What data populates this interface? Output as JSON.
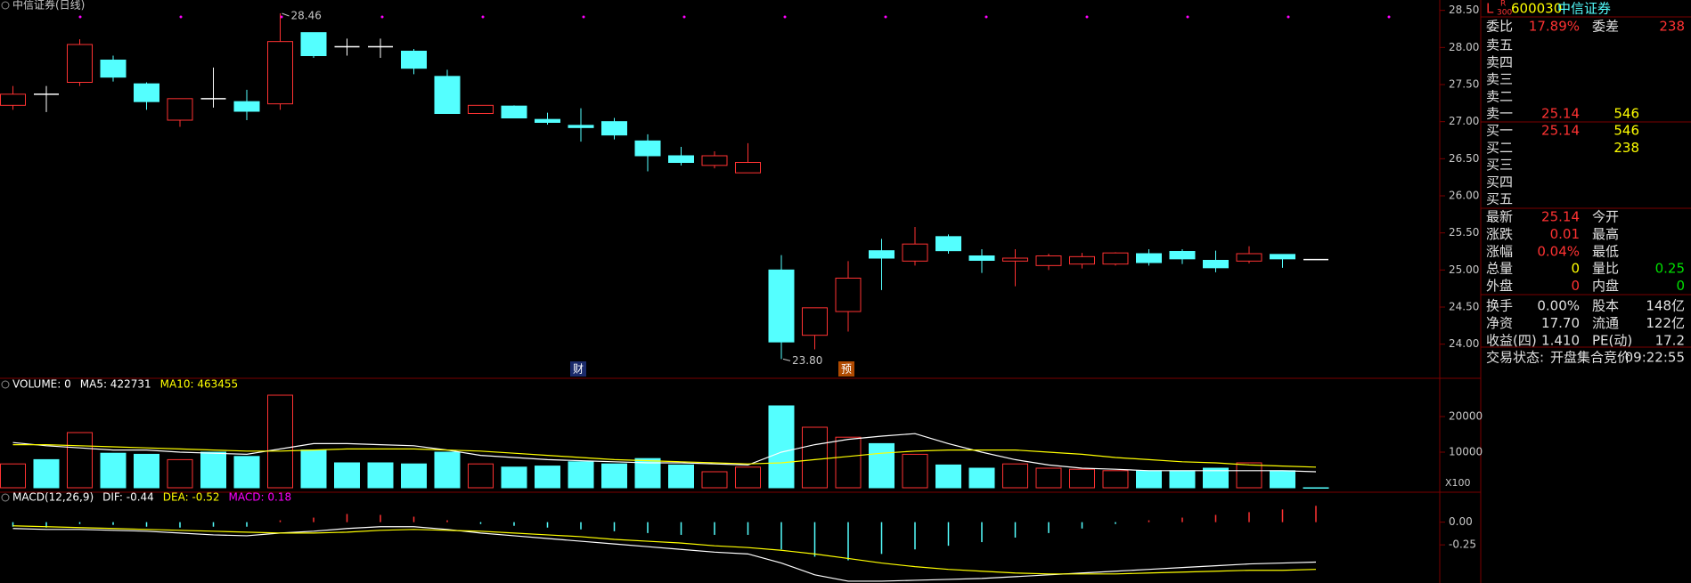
{
  "chart_data": [
    {
      "type": "candlestick",
      "title": "中信证券(日线)",
      "up_color": "#ff3232",
      "down_color": "#54ffff",
      "doji_color": "#ffffff",
      "high_label": "28.46",
      "low_label": "23.80",
      "markers": [
        "财",
        "预"
      ],
      "categories": [
        null,
        null,
        null,
        null,
        null,
        null,
        null,
        null,
        null,
        null,
        null,
        null,
        null,
        null,
        null,
        null,
        null,
        null,
        null,
        null,
        null,
        null,
        null,
        null,
        null,
        null,
        null,
        null,
        null,
        null,
        null,
        null,
        null,
        null,
        null,
        null,
        null,
        null,
        null,
        null
      ],
      "open": [
        27.22,
        27.37,
        27.53,
        27.83,
        27.51,
        27.02,
        27.31,
        27.27,
        27.24,
        28.2,
        28.01,
        28.01,
        27.95,
        27.61,
        27.11,
        27.21,
        27.03,
        26.95,
        27.0,
        26.74,
        26.54,
        26.41,
        26.31,
        25.0,
        24.12,
        24.44,
        25.26,
        25.12,
        25.45,
        25.19,
        25.12,
        25.06,
        25.08,
        25.08,
        25.22,
        25.25,
        25.13,
        25.12,
        25.21,
        25.14
      ],
      "close": [
        27.37,
        27.37,
        28.04,
        27.6,
        27.27,
        27.31,
        27.31,
        27.14,
        28.08,
        27.89,
        28.01,
        28.01,
        27.72,
        27.11,
        27.22,
        27.05,
        26.99,
        26.92,
        26.82,
        26.54,
        26.45,
        26.54,
        26.45,
        24.03,
        24.49,
        24.89,
        25.16,
        25.35,
        25.26,
        25.13,
        25.16,
        25.19,
        25.18,
        25.23,
        25.1,
        25.15,
        25.03,
        25.22,
        25.15,
        25.14
      ],
      "high": [
        27.48,
        27.48,
        28.11,
        27.89,
        27.53,
        27.31,
        27.73,
        27.43,
        28.46,
        28.2,
        28.12,
        28.12,
        27.98,
        27.7,
        27.22,
        27.22,
        27.12,
        27.18,
        27.05,
        26.83,
        26.66,
        26.6,
        26.71,
        25.2,
        24.49,
        25.12,
        25.42,
        25.58,
        25.48,
        25.28,
        25.28,
        25.22,
        25.23,
        25.24,
        25.28,
        25.28,
        25.26,
        25.32,
        25.21,
        25.14
      ],
      "low": [
        27.16,
        27.13,
        27.48,
        27.54,
        27.16,
        26.93,
        27.19,
        27.02,
        27.16,
        27.86,
        27.89,
        27.86,
        27.64,
        27.11,
        27.11,
        27.05,
        26.96,
        26.73,
        26.76,
        26.33,
        26.41,
        26.37,
        26.31,
        23.8,
        23.93,
        24.17,
        24.73,
        25.06,
        25.22,
        24.96,
        24.78,
        25.0,
        25.02,
        25.06,
        25.06,
        25.08,
        24.97,
        25.09,
        25.03,
        25.14
      ],
      "ylim": [
        23.54,
        28.64
      ],
      "yticks": [
        {
          "value": 28.5,
          "label": "28.50"
        },
        {
          "value": 28,
          "label": "28.00"
        },
        {
          "value": 27.5,
          "label": "27.50"
        },
        {
          "value": 27,
          "label": "27.00"
        },
        {
          "value": 26.5,
          "label": "26.50"
        },
        {
          "value": 26,
          "label": "26.00"
        },
        {
          "value": 25.5,
          "label": "25.50"
        },
        {
          "value": 25,
          "label": "25.00"
        },
        {
          "value": 24.5,
          "label": "24.50"
        },
        {
          "value": 24,
          "label": "24.00"
        }
      ]
    },
    {
      "type": "bar",
      "title": "VOLUME: 0",
      "unit_label": "X100",
      "values": [
        6700,
        7900,
        15500,
        9700,
        9400,
        7900,
        10000,
        8800,
        26000,
        10600,
        7000,
        7000,
        6700,
        10000,
        6700,
        5800,
        6100,
        7300,
        6700,
        8200,
        6400,
        4500,
        5800,
        23000,
        17000,
        14200,
        12400,
        9400,
        6400,
        5500,
        6700,
        5500,
        5200,
        4800,
        4800,
        4800,
        5500,
        7000,
        4800,
        0
      ],
      "series": [
        {
          "name": "MA5: 422731",
          "color": "#ffffff",
          "values": [
            12700,
            11800,
            11200,
            10600,
            10600,
            10000,
            9700,
            9400,
            10900,
            12400,
            12400,
            12100,
            11800,
            10600,
            9100,
            8500,
            7900,
            7600,
            7300,
            7000,
            7000,
            6700,
            6400,
            10000,
            12100,
            13600,
            14500,
            15200,
            12400,
            10000,
            7900,
            6400,
            5500,
            5200,
            4800,
            4800,
            4800,
            4800,
            4800,
            4500
          ]
        },
        {
          "name": "MA10: 463455",
          "color": "#ffff00",
          "values": [
            12100,
            12100,
            11800,
            11500,
            11200,
            10900,
            10600,
            10300,
            10300,
            10600,
            10900,
            10900,
            10900,
            10600,
            10300,
            9700,
            9100,
            8500,
            7900,
            7600,
            7300,
            7000,
            6700,
            7000,
            7900,
            8800,
            9700,
            10300,
            10600,
            10600,
            10600,
            10000,
            9400,
            8500,
            7900,
            7300,
            7000,
            6400,
            6100,
            5800
          ]
        }
      ],
      "ylim": [
        0,
        30000
      ],
      "yticks": [
        10000,
        20000
      ]
    },
    {
      "type": "macd",
      "title": "MACD(12,26,9)",
      "values_name": "MACD: 0.18",
      "values_name_color": "#ff00ff",
      "up_color": "#ff3232",
      "down_color": "#54ffff",
      "values": [
        -0.05,
        -0.06,
        -0.02,
        -0.03,
        -0.05,
        -0.06,
        -0.05,
        -0.05,
        0.02,
        0.05,
        0.09,
        0.08,
        0.06,
        0.02,
        -0.02,
        -0.04,
        -0.06,
        -0.08,
        -0.1,
        -0.12,
        -0.14,
        -0.14,
        -0.14,
        -0.3,
        -0.38,
        -0.42,
        -0.35,
        -0.3,
        -0.26,
        -0.22,
        -0.17,
        -0.12,
        -0.07,
        -0.02,
        0.02,
        0.05,
        0.08,
        0.11,
        0.14,
        0.18
      ],
      "series": [
        {
          "name": "DIF: -0.44",
          "color": "#ffffff",
          "values": [
            -0.07,
            -0.08,
            -0.08,
            -0.09,
            -0.1,
            -0.12,
            -0.14,
            -0.15,
            -0.12,
            -0.1,
            -0.07,
            -0.05,
            -0.05,
            -0.08,
            -0.12,
            -0.15,
            -0.18,
            -0.21,
            -0.24,
            -0.27,
            -0.3,
            -0.33,
            -0.35,
            -0.45,
            -0.58,
            -0.65,
            -0.65,
            -0.64,
            -0.63,
            -0.62,
            -0.6,
            -0.58,
            -0.56,
            -0.54,
            -0.52,
            -0.5,
            -0.48,
            -0.46,
            -0.45,
            -0.44
          ]
        },
        {
          "name": "DEA: -0.52",
          "color": "#ffff00",
          "values": [
            -0.04,
            -0.05,
            -0.06,
            -0.07,
            -0.08,
            -0.09,
            -0.1,
            -0.11,
            -0.12,
            -0.12,
            -0.11,
            -0.09,
            -0.08,
            -0.09,
            -0.1,
            -0.12,
            -0.14,
            -0.16,
            -0.19,
            -0.21,
            -0.23,
            -0.26,
            -0.28,
            -0.31,
            -0.35,
            -0.4,
            -0.45,
            -0.49,
            -0.52,
            -0.54,
            -0.56,
            -0.57,
            -0.57,
            -0.57,
            -0.56,
            -0.55,
            -0.54,
            -0.53,
            -0.53,
            -0.52
          ]
        }
      ],
      "ylim": [
        -0.67,
        0.31
      ],
      "yticks": [
        {
          "value": 0,
          "label": "0.00"
        },
        {
          "value": -0.25,
          "label": "-0.25"
        }
      ]
    }
  ],
  "quote_panel": {
    "market": "L",
    "board_top": "R",
    "board_bottom": "300",
    "code": "600030",
    "name": "中信证券",
    "ratio_row": {
      "label": "委比",
      "value": "17.89%",
      "label2": "委差",
      "value2": "238",
      "color": "#ff3232",
      "color2": "#ff3232"
    },
    "asks": [
      {
        "label": "卖五"
      },
      {
        "label": "卖四"
      },
      {
        "label": "卖三"
      },
      {
        "label": "卖二"
      },
      {
        "label": "卖一",
        "price": "25.14",
        "volume": "546"
      }
    ],
    "bids": [
      {
        "label": "买一",
        "price": "25.14",
        "volume": "546"
      },
      {
        "label": "买二",
        "volume": "238"
      },
      {
        "label": "买三"
      },
      {
        "label": "买四"
      },
      {
        "label": "买五"
      }
    ],
    "stats": [
      {
        "label": "最新",
        "value": "25.14",
        "label2": "今开",
        "color": "#ff3232"
      },
      {
        "label": "涨跌",
        "value": "0.01",
        "label2": "最高",
        "color": "#ff3232"
      },
      {
        "label": "涨幅",
        "value": "0.04%",
        "label2": "最低",
        "color": "#ff3232"
      },
      {
        "label": "总量",
        "value": "0",
        "label2": "量比",
        "value2": "0.25",
        "color": "#ffff00",
        "color2": "#00e000"
      },
      {
        "label": "外盘",
        "value": "0",
        "label2": "内盘",
        "value2": "0",
        "color": "#ff3232",
        "color2": "#00e000"
      },
      {
        "label": "换手",
        "value": "0.00%",
        "label2": "股本",
        "value2": "148亿",
        "color": "#e0e0e0",
        "color2": "#e0e0e0"
      },
      {
        "label": "净资",
        "value": "17.70",
        "label2": "流通",
        "value2": "122亿",
        "color": "#e0e0e0",
        "color2": "#e0e0e0"
      },
      {
        "label": "收益(四)",
        "value": "1.410",
        "label2": "PE(动)",
        "value2": "17.2",
        "color": "#e0e0e0",
        "color2": "#e0e0e0"
      }
    ],
    "status_label": "交易状态:",
    "status": "开盘集合竞价",
    "time": "09:22:55"
  }
}
